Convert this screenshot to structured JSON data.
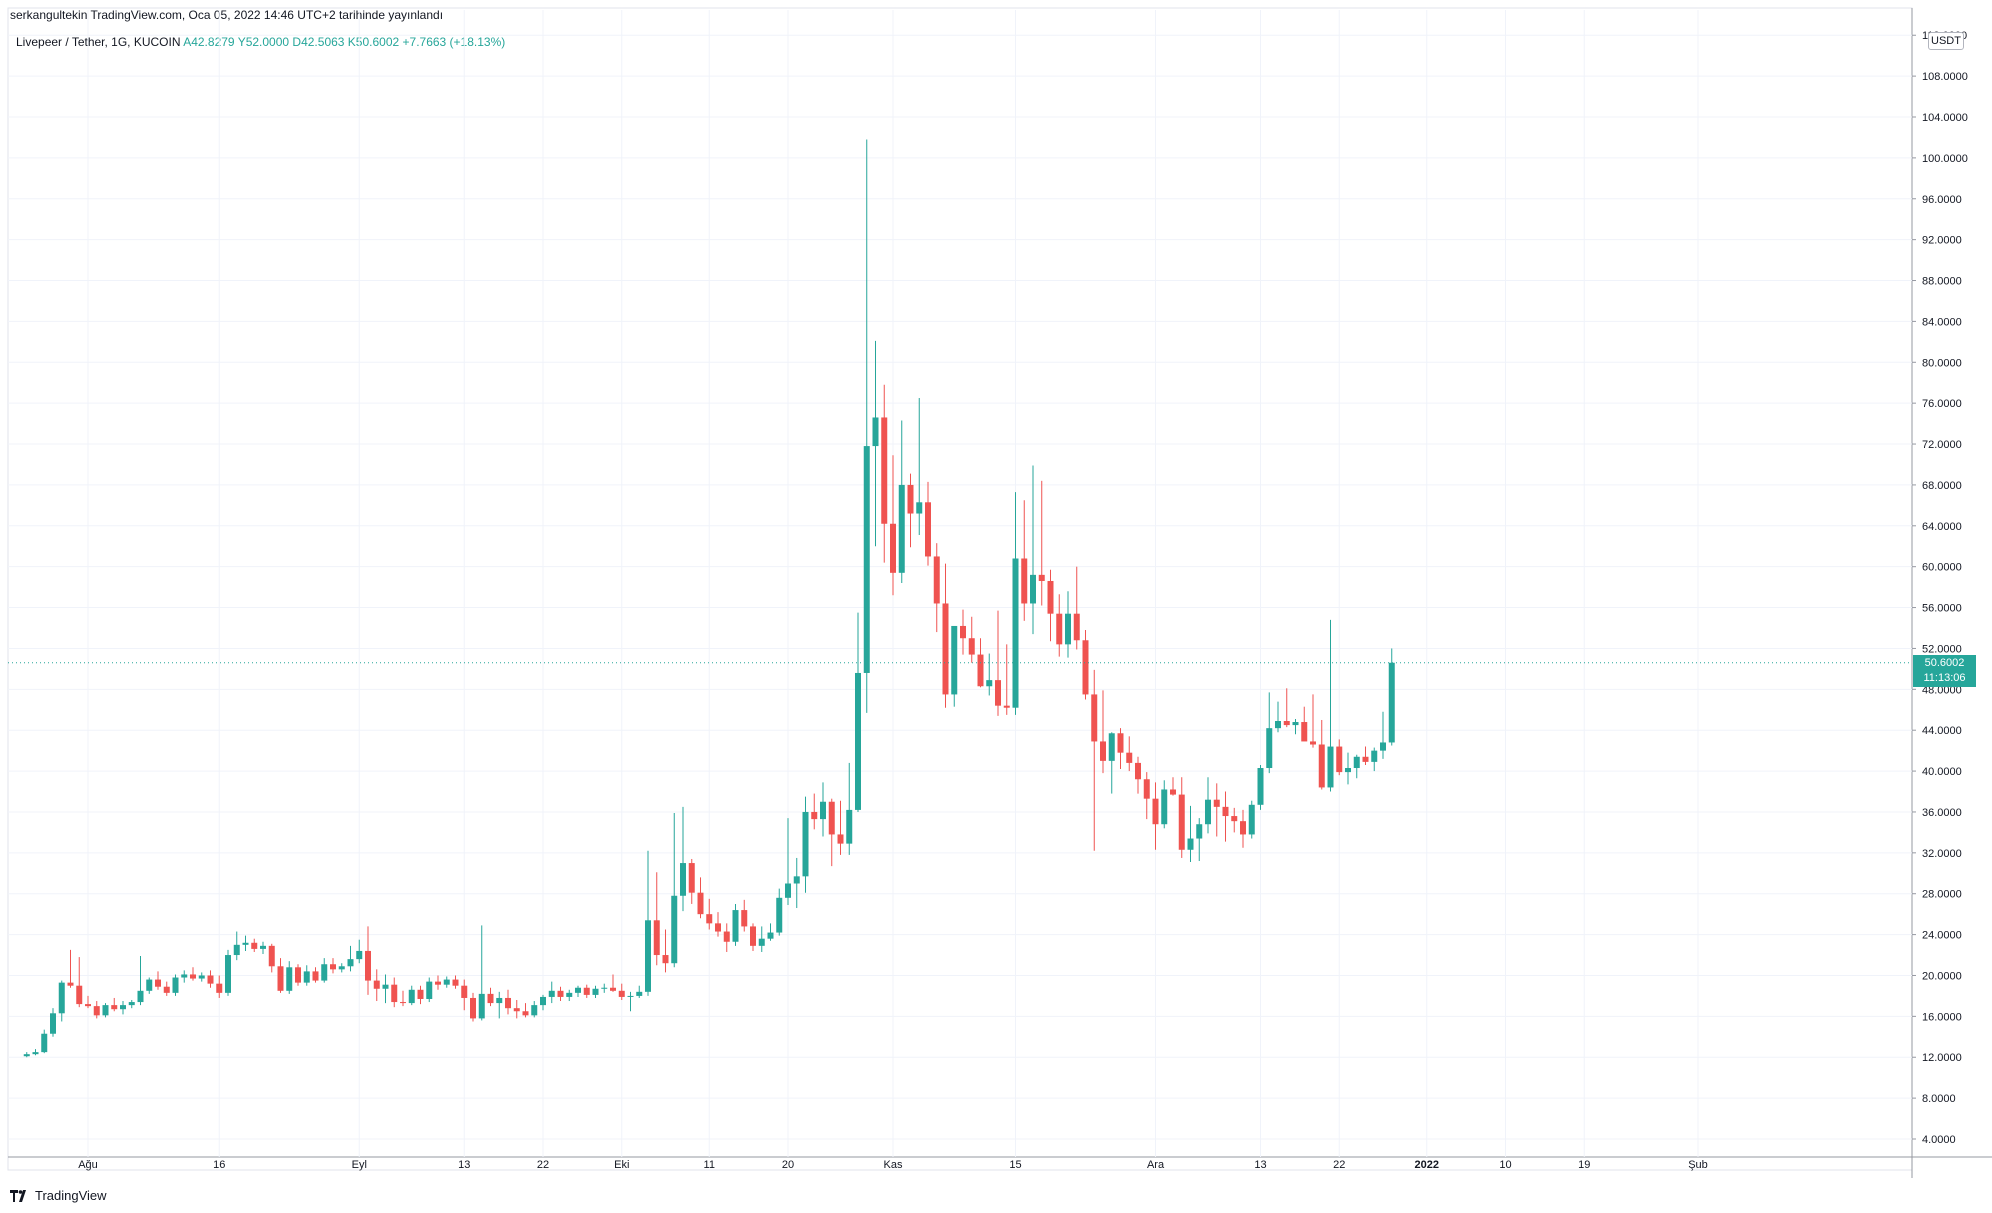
{
  "header": {
    "publish_line": "serkangultekin TradingView.com, Oca 05, 2022 14:46 UTC+2 tarihinde yayınlandı",
    "symbol_line": "Livepeer / Tether, 1G, KUCOIN",
    "ohlc_line": "A42.8279  Y52.0000  D42.5063  K50.6002  +7.7663 (+18.13%)"
  },
  "brand": {
    "name": "TradingView",
    "icon": "tradingview-logo-icon"
  },
  "price_axis": {
    "unit": "USDT"
  },
  "last_price": {
    "value": "50.6002",
    "countdown": "11:13:06"
  },
  "colors": {
    "up": "#26a69a",
    "down": "#ef5350",
    "grid": "#f0f3fa",
    "text": "#131722"
  },
  "chart_data": {
    "type": "candlestick",
    "symbol": "Livepeer / Tether",
    "interval": "1G",
    "exchange": "KUCOIN",
    "ylim": [
      2,
      113
    ],
    "y_ticks": [
      4,
      8,
      12,
      16,
      20,
      24,
      28,
      32,
      36,
      40,
      44,
      48,
      52,
      56,
      60,
      64,
      68,
      72,
      76,
      80,
      84,
      88,
      92,
      96,
      100,
      104,
      108,
      112
    ],
    "x_ticks": [
      {
        "day": 0,
        "label": "Ağu"
      },
      {
        "day": 15,
        "label": "16"
      },
      {
        "day": 31,
        "label": "Eyl"
      },
      {
        "day": 43,
        "label": "13"
      },
      {
        "day": 52,
        "label": "22"
      },
      {
        "day": 61,
        "label": "Eki"
      },
      {
        "day": 71,
        "label": "11"
      },
      {
        "day": 80,
        "label": "20"
      },
      {
        "day": 92,
        "label": "Kas"
      },
      {
        "day": 106,
        "label": "15"
      },
      {
        "day": 122,
        "label": "Ara"
      },
      {
        "day": 134,
        "label": "13"
      },
      {
        "day": 143,
        "label": "22"
      },
      {
        "day": 153,
        "label": "2022"
      },
      {
        "day": 162,
        "label": "10"
      },
      {
        "day": 171,
        "label": "19"
      },
      {
        "day": 184,
        "label": "Şub"
      }
    ],
    "candles": [
      [
        12.1,
        12.5,
        12.0,
        12.3
      ],
      [
        12.3,
        12.8,
        12.2,
        12.5
      ],
      [
        12.5,
        14.7,
        12.4,
        14.3
      ],
      [
        14.3,
        16.8,
        14.0,
        16.3
      ],
      [
        16.3,
        19.5,
        15.5,
        19.3
      ],
      [
        19.3,
        22.5,
        18.8,
        19.0
      ],
      [
        19.0,
        21.8,
        16.9,
        17.2
      ],
      [
        17.2,
        18.0,
        16.8,
        17.0
      ],
      [
        17.0,
        17.5,
        15.8,
        16.1
      ],
      [
        16.1,
        17.3,
        15.9,
        17.1
      ],
      [
        17.1,
        17.8,
        16.5,
        16.7
      ],
      [
        16.7,
        17.5,
        16.2,
        17.1
      ],
      [
        17.1,
        17.6,
        16.8,
        17.4
      ],
      [
        17.4,
        21.9,
        17.1,
        18.5
      ],
      [
        18.5,
        19.8,
        18.2,
        19.6
      ],
      [
        19.6,
        20.4,
        18.6,
        18.9
      ],
      [
        18.9,
        19.4,
        18.0,
        18.3
      ],
      [
        18.3,
        20.1,
        18.0,
        19.8
      ],
      [
        19.8,
        20.5,
        19.3,
        20.1
      ],
      [
        20.1,
        20.8,
        19.5,
        19.7
      ],
      [
        19.7,
        20.3,
        19.4,
        20.0
      ],
      [
        20.0,
        20.5,
        18.8,
        19.2
      ],
      [
        19.2,
        20.0,
        17.8,
        18.3
      ],
      [
        18.3,
        22.5,
        18.0,
        22.0
      ],
      [
        22.0,
        24.3,
        21.5,
        23.0
      ],
      [
        23.0,
        23.9,
        22.4,
        23.2
      ],
      [
        23.2,
        23.6,
        22.3,
        22.6
      ],
      [
        22.6,
        23.3,
        22.1,
        22.9
      ],
      [
        22.9,
        23.1,
        20.3,
        20.9
      ],
      [
        20.9,
        21.7,
        18.3,
        18.5
      ],
      [
        18.5,
        21.4,
        18.2,
        20.8
      ],
      [
        20.8,
        21.1,
        19.0,
        19.3
      ],
      [
        19.3,
        21.0,
        19.0,
        20.4
      ],
      [
        20.4,
        20.8,
        19.3,
        19.5
      ],
      [
        19.5,
        21.7,
        19.3,
        21.1
      ],
      [
        21.1,
        21.7,
        20.2,
        20.6
      ],
      [
        20.6,
        21.2,
        20.3,
        20.9
      ],
      [
        20.9,
        22.9,
        20.4,
        21.6
      ],
      [
        21.6,
        23.5,
        21.2,
        22.4
      ],
      [
        22.4,
        24.8,
        18.1,
        19.5
      ],
      [
        19.5,
        20.6,
        17.5,
        18.7
      ],
      [
        18.7,
        20.1,
        17.3,
        19.1
      ],
      [
        19.1,
        19.8,
        16.9,
        17.4
      ],
      [
        17.4,
        18.5,
        17.0,
        17.3
      ],
      [
        17.3,
        19.0,
        17.1,
        18.6
      ],
      [
        18.6,
        19.0,
        17.2,
        17.7
      ],
      [
        17.7,
        19.8,
        17.4,
        19.4
      ],
      [
        19.4,
        20.0,
        18.6,
        19.1
      ],
      [
        19.1,
        19.9,
        18.8,
        19.6
      ],
      [
        19.6,
        20.0,
        18.7,
        19.0
      ],
      [
        19.0,
        19.6,
        16.6,
        17.8
      ],
      [
        17.8,
        18.3,
        15.5,
        15.8
      ],
      [
        15.8,
        24.9,
        15.6,
        18.2
      ],
      [
        18.2,
        18.8,
        17.0,
        17.3
      ],
      [
        17.3,
        18.4,
        15.8,
        17.8
      ],
      [
        17.8,
        18.6,
        16.2,
        16.8
      ],
      [
        16.8,
        17.6,
        15.8,
        16.5
      ],
      [
        16.5,
        17.3,
        15.9,
        16.1
      ],
      [
        16.1,
        17.5,
        15.9,
        17.1
      ],
      [
        17.1,
        18.1,
        16.6,
        17.9
      ],
      [
        17.9,
        19.4,
        17.3,
        18.5
      ],
      [
        18.5,
        18.9,
        17.5,
        17.9
      ],
      [
        17.9,
        18.6,
        17.5,
        18.3
      ],
      [
        18.3,
        19.0,
        17.9,
        18.8
      ],
      [
        18.8,
        19.1,
        17.8,
        18.1
      ],
      [
        18.1,
        19.0,
        17.8,
        18.7
      ],
      [
        18.7,
        19.2,
        18.3,
        18.8
      ],
      [
        18.8,
        20.1,
        18.4,
        18.5
      ],
      [
        18.5,
        19.2,
        17.6,
        17.9
      ],
      [
        17.9,
        18.4,
        16.5,
        18.0
      ],
      [
        18.0,
        19.0,
        17.8,
        18.4
      ],
      [
        18.4,
        32.2,
        18.0,
        25.4
      ],
      [
        25.4,
        30.1,
        21.0,
        22.0
      ],
      [
        22.0,
        24.5,
        20.3,
        21.2
      ],
      [
        21.2,
        35.9,
        20.8,
        27.8
      ],
      [
        27.8,
        36.5,
        26.3,
        31.0
      ],
      [
        31.0,
        31.4,
        27.0,
        28.1
      ],
      [
        28.1,
        29.6,
        25.6,
        26.0
      ],
      [
        26.0,
        27.5,
        24.5,
        25.1
      ],
      [
        25.1,
        26.2,
        23.8,
        24.3
      ],
      [
        24.3,
        25.1,
        22.3,
        23.3
      ],
      [
        23.3,
        27.0,
        22.9,
        26.4
      ],
      [
        26.4,
        27.4,
        24.3,
        24.8
      ],
      [
        24.8,
        25.1,
        22.4,
        22.9
      ],
      [
        22.9,
        24.8,
        22.3,
        23.6
      ],
      [
        23.6,
        25.1,
        23.4,
        24.2
      ],
      [
        24.2,
        28.5,
        23.9,
        27.6
      ],
      [
        27.6,
        35.4,
        26.9,
        29.0
      ],
      [
        29.0,
        31.5,
        26.6,
        29.7
      ],
      [
        29.7,
        37.5,
        28.1,
        36.0
      ],
      [
        36.0,
        37.8,
        34.3,
        35.3
      ],
      [
        35.3,
        38.9,
        33.6,
        37.0
      ],
      [
        37.0,
        37.3,
        30.7,
        33.8
      ],
      [
        33.8,
        37.1,
        31.8,
        32.9
      ],
      [
        32.9,
        40.8,
        31.8,
        36.2
      ],
      [
        36.2,
        55.5,
        36.0,
        49.6
      ],
      [
        49.6,
        101.8,
        45.7,
        71.8
      ],
      [
        71.8,
        82.1,
        62.0,
        74.6
      ],
      [
        74.6,
        77.8,
        60.4,
        64.2
      ],
      [
        64.2,
        70.9,
        57.2,
        59.4
      ],
      [
        59.4,
        74.3,
        58.4,
        68.0
      ],
      [
        68.0,
        69.1,
        61.9,
        65.2
      ],
      [
        65.2,
        76.5,
        63.1,
        66.3
      ],
      [
        66.3,
        68.3,
        60.1,
        61.0
      ],
      [
        61.0,
        62.3,
        53.6,
        56.4
      ],
      [
        56.4,
        60.3,
        46.2,
        47.5
      ],
      [
        47.5,
        53.4,
        46.3,
        54.2
      ],
      [
        54.2,
        55.8,
        51.4,
        53.0
      ],
      [
        53.0,
        55.1,
        50.6,
        51.4
      ],
      [
        51.4,
        53.0,
        48.2,
        48.3
      ],
      [
        48.3,
        51.5,
        47.4,
        48.9
      ],
      [
        48.9,
        55.7,
        45.4,
        46.4
      ],
      [
        46.4,
        52.4,
        45.5,
        46.2
      ],
      [
        46.2,
        67.3,
        45.5,
        60.8
      ],
      [
        60.8,
        66.5,
        54.7,
        56.4
      ],
      [
        56.4,
        69.9,
        53.4,
        59.2
      ],
      [
        59.2,
        68.4,
        56.2,
        58.6
      ],
      [
        58.6,
        59.7,
        52.7,
        55.4
      ],
      [
        55.4,
        57.3,
        51.2,
        52.4
      ],
      [
        52.4,
        57.6,
        51.1,
        55.4
      ],
      [
        55.4,
        60.0,
        51.9,
        52.8
      ],
      [
        52.8,
        53.8,
        47.0,
        47.5
      ],
      [
        47.5,
        49.9,
        32.2,
        42.9
      ],
      [
        42.9,
        47.9,
        39.8,
        41.0
      ],
      [
        41.0,
        43.8,
        37.8,
        43.7
      ],
      [
        43.7,
        44.2,
        40.2,
        41.8
      ],
      [
        41.8,
        43.4,
        40.0,
        40.8
      ],
      [
        40.8,
        41.4,
        37.8,
        39.2
      ],
      [
        39.2,
        39.9,
        35.3,
        37.3
      ],
      [
        37.3,
        38.9,
        32.3,
        34.8
      ],
      [
        34.8,
        39.1,
        34.4,
        38.2
      ],
      [
        38.2,
        39.4,
        37.6,
        37.7
      ],
      [
        37.7,
        39.4,
        31.5,
        32.3
      ],
      [
        32.3,
        36.6,
        31.1,
        33.4
      ],
      [
        33.4,
        35.4,
        31.2,
        34.8
      ],
      [
        34.8,
        39.4,
        33.9,
        37.2
      ],
      [
        37.2,
        38.8,
        33.6,
        36.5
      ],
      [
        36.5,
        38.0,
        33.1,
        35.6
      ],
      [
        35.6,
        36.4,
        34.0,
        35.1
      ],
      [
        35.1,
        36.2,
        32.5,
        33.8
      ],
      [
        33.8,
        37.1,
        33.4,
        36.7
      ],
      [
        36.7,
        40.6,
        36.2,
        40.3
      ],
      [
        40.3,
        47.7,
        39.8,
        44.2
      ],
      [
        44.2,
        46.8,
        43.8,
        44.9
      ],
      [
        44.9,
        48.1,
        44.3,
        44.5
      ],
      [
        44.5,
        45.1,
        43.6,
        44.8
      ],
      [
        44.8,
        46.3,
        43.2,
        42.9
      ],
      [
        42.9,
        47.5,
        42.3,
        42.6
      ],
      [
        42.6,
        45.0,
        38.2,
        38.4
      ],
      [
        38.4,
        54.8,
        38.0,
        42.4
      ],
      [
        42.4,
        43.1,
        39.6,
        39.9
      ],
      [
        39.9,
        41.8,
        38.7,
        40.3
      ],
      [
        40.3,
        41.6,
        39.3,
        41.4
      ],
      [
        41.4,
        42.4,
        40.6,
        40.9
      ],
      [
        40.9,
        42.3,
        40.0,
        42.0
      ],
      [
        42.0,
        45.8,
        41.2,
        42.8
      ],
      [
        42.8,
        52.0,
        42.5,
        50.6
      ]
    ]
  }
}
